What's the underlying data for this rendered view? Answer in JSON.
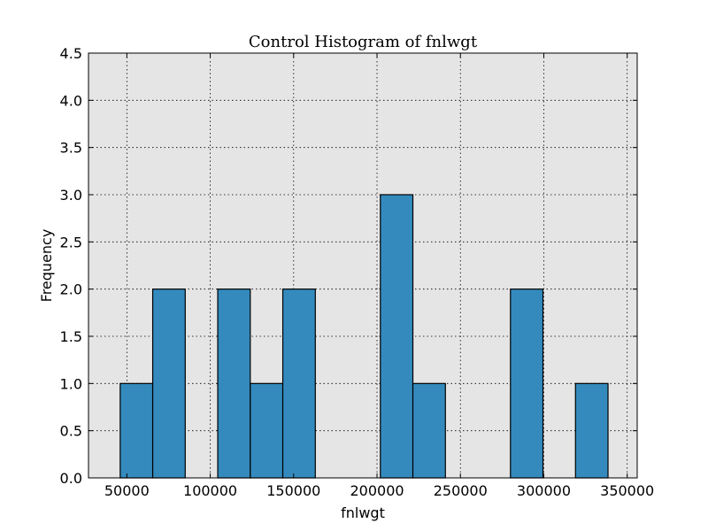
{
  "chart_data": {
    "type": "bar",
    "title": "Control Histogram of fnlwgt",
    "xlabel": "fnlwgt",
    "ylabel": "Frequency",
    "xlim": [
      27000,
      356000
    ],
    "ylim": [
      0,
      4.5
    ],
    "xticks": [
      50000,
      100000,
      150000,
      200000,
      250000,
      300000,
      350000
    ],
    "yticks": [
      "0.0",
      "0.5",
      "1.0",
      "1.5",
      "2.0",
      "2.5",
      "3.0",
      "3.5",
      "4.0",
      "4.5"
    ],
    "grid": true,
    "bins": [
      {
        "x0": 46000,
        "x1": 65500,
        "count": 1
      },
      {
        "x0": 65500,
        "x1": 85000,
        "count": 2
      },
      {
        "x0": 85000,
        "x1": 104500,
        "count": 0
      },
      {
        "x0": 104500,
        "x1": 124000,
        "count": 2
      },
      {
        "x0": 124000,
        "x1": 143500,
        "count": 1
      },
      {
        "x0": 143500,
        "x1": 163000,
        "count": 2
      },
      {
        "x0": 163000,
        "x1": 182500,
        "count": 0
      },
      {
        "x0": 182500,
        "x1": 202000,
        "count": 0
      },
      {
        "x0": 202000,
        "x1": 221500,
        "count": 3
      },
      {
        "x0": 221500,
        "x1": 241000,
        "count": 1
      },
      {
        "x0": 241000,
        "x1": 260500,
        "count": 0
      },
      {
        "x0": 260500,
        "x1": 280000,
        "count": 0
      },
      {
        "x0": 280000,
        "x1": 299500,
        "count": 2
      },
      {
        "x0": 299500,
        "x1": 319000,
        "count": 0
      },
      {
        "x0": 319000,
        "x1": 338500,
        "count": 1
      }
    ],
    "colors": {
      "bar": "#348abd",
      "plot_bg": "#e5e5e5",
      "edge": "#000000"
    }
  }
}
